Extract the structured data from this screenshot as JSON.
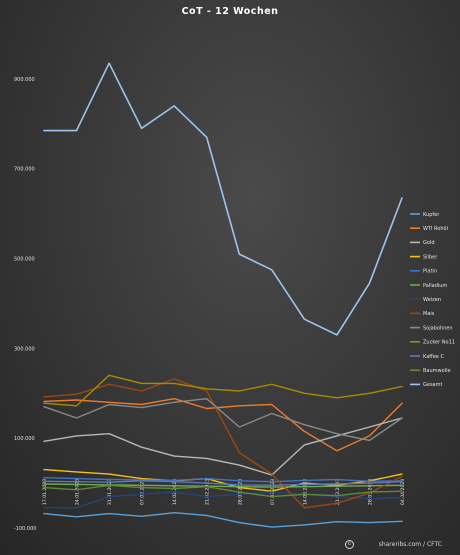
{
  "chart_data": {
    "type": "line",
    "title": "CoT - 12 Wochen",
    "xlabel": "",
    "ylabel": "",
    "x": [
      "17.01.2023",
      "24.01.2023",
      "31.01.2023",
      "07.02.2023",
      "14.02.2023",
      "21.02.2023",
      "28.02.2023",
      "07.03.2023",
      "14.03.2023",
      "21.03.2023",
      "28.03.2023",
      "04.04.2023"
    ],
    "ylim": [
      -100000,
      1000000
    ],
    "yticks": [
      -100000,
      100000,
      300000,
      500000,
      700000,
      900000
    ],
    "ytick_labels": [
      "-100.000",
      "100.000",
      "300.000",
      "500.000",
      "700.000",
      "900.000"
    ],
    "grid": false,
    "legend_position": "right",
    "series": [
      {
        "name": "Kupfer",
        "color": "#5aa0d8",
        "values": [
          -68000,
          -75000,
          -68000,
          -74000,
          -66000,
          -72000,
          -88000,
          -98000,
          -93000,
          -86000,
          -88000,
          -85000
        ]
      },
      {
        "name": "WTI Rohöl",
        "color": "#ec7b2c",
        "values": [
          182000,
          185000,
          180000,
          175000,
          188000,
          166000,
          172000,
          175000,
          115000,
          72000,
          105000,
          178000
        ]
      },
      {
        "name": "Gold",
        "color": "#b8b8b8",
        "values": [
          93000,
          105000,
          110000,
          80000,
          60000,
          55000,
          40000,
          18000,
          85000,
          105000,
          125000,
          145000
        ]
      },
      {
        "name": "Silber",
        "color": "#f5c21a",
        "values": [
          30000,
          25000,
          20000,
          10000,
          5000,
          10000,
          -10000,
          -18000,
          0,
          -5000,
          5000,
          20000
        ]
      },
      {
        "name": "Platin",
        "color": "#4472c4",
        "values": [
          12000,
          10000,
          8000,
          7000,
          6000,
          10000,
          5000,
          3000,
          6000,
          8000,
          4000,
          5000
        ]
      },
      {
        "name": "Palladium",
        "color": "#70ad47",
        "values": [
          -2000,
          -3000,
          -4000,
          -5000,
          -6000,
          -7000,
          -8000,
          -9000,
          -8000,
          -7000,
          -6000,
          -5000
        ]
      },
      {
        "name": "Weizen",
        "color": "#264478",
        "values": [
          -55000,
          -55000,
          -30000,
          -25000,
          -20000,
          -30000,
          -25000,
          -20000,
          -25000,
          -30000,
          -35000,
          -32000
        ]
      },
      {
        "name": "Mais",
        "color": "#9e480e",
        "values": [
          192000,
          198000,
          220000,
          205000,
          232000,
          205000,
          68000,
          20000,
          -55000,
          -45000,
          -22000,
          15000
        ]
      },
      {
        "name": "Sojabohnen",
        "color": "#8a8a8a",
        "values": [
          170000,
          145000,
          175000,
          168000,
          180000,
          188000,
          125000,
          155000,
          130000,
          110000,
          95000,
          145000
        ]
      },
      {
        "name": "Zucker No11",
        "color": "#a88b00",
        "values": [
          178000,
          172000,
          240000,
          222000,
          222000,
          210000,
          205000,
          220000,
          200000,
          190000,
          200000,
          215000
        ]
      },
      {
        "name": "Kaffee C",
        "color": "#5a78c2",
        "values": [
          4000,
          3000,
          2000,
          5000,
          3000,
          0,
          -4000,
          -5000,
          -3000,
          -2000,
          0,
          3000
        ]
      },
      {
        "name": "Baumwolle",
        "color": "#5f8a3a",
        "values": [
          -10000,
          -15000,
          -5000,
          -10000,
          -12000,
          -8000,
          -20000,
          -30000,
          -25000,
          -28000,
          -20000,
          -18000
        ]
      },
      {
        "name": "Gesamt",
        "color": "#9ec4ee",
        "values": [
          785000,
          785000,
          935000,
          790000,
          840000,
          770000,
          510000,
          475000,
          365000,
          330000,
          445000,
          635000
        ]
      }
    ]
  },
  "credit": {
    "text": "shareribs.com / CFTC"
  }
}
